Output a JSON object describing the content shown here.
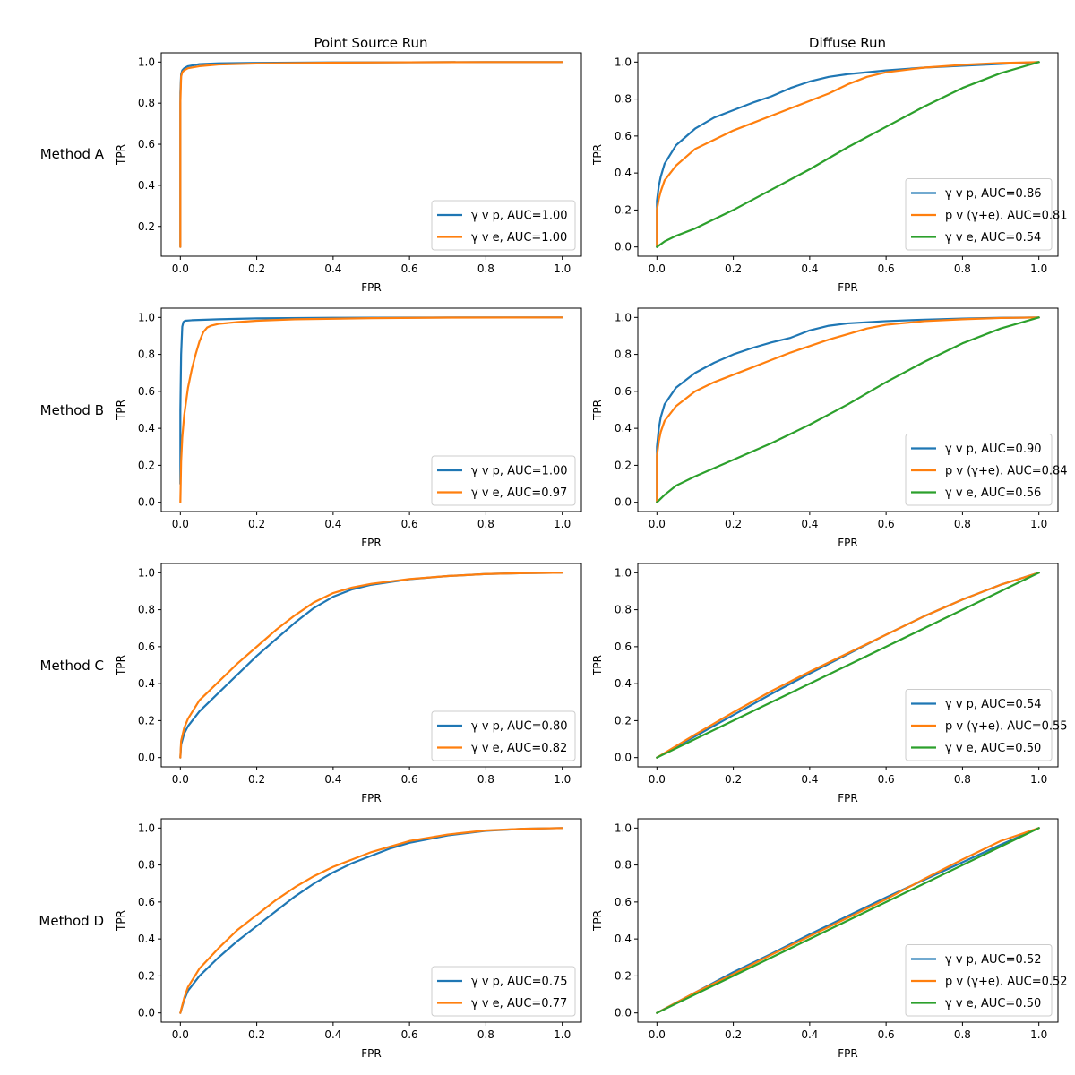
{
  "figure": {
    "column_titles": [
      "Point Source Run",
      "Diffuse Run"
    ],
    "row_labels": [
      "Method A",
      "Method B",
      "Method C",
      "Method D"
    ]
  },
  "colors": {
    "blue": "#1f77b4",
    "orange": "#ff7f0e",
    "green": "#2ca02c"
  },
  "chart_data": [
    {
      "type": "line",
      "row": 0,
      "col": 0,
      "xlabel": "FPR",
      "ylabel": "TPR",
      "xlim": [
        -0.05,
        1.05
      ],
      "ylim": [
        0.055,
        1.045
      ],
      "xticks": [
        "0.0",
        "0.2",
        "0.4",
        "0.6",
        "0.8",
        "1.0"
      ],
      "xtick_values": [
        0,
        0.2,
        0.4,
        0.6,
        0.8,
        1.0
      ],
      "yticks": [
        "0.2",
        "0.4",
        "0.6",
        "0.8",
        "1.0"
      ],
      "ytick_values": [
        0.2,
        0.4,
        0.6,
        0.8,
        1.0
      ],
      "series": [
        {
          "name": "γ v p, AUC=1.00",
          "color": "#1f77b4",
          "x": [
            0,
            0,
            0.002,
            0.005,
            0.01,
            0.02,
            0.05,
            0.1,
            0.2,
            0.4,
            0.6,
            0.8,
            1.0
          ],
          "y": [
            0.1,
            0.85,
            0.94,
            0.96,
            0.97,
            0.98,
            0.99,
            0.994,
            0.996,
            0.998,
            0.999,
            1.0,
            1.0
          ]
        },
        {
          "name": "γ v e, AUC=1.00",
          "color": "#ff7f0e",
          "x": [
            0,
            0,
            0.002,
            0.005,
            0.01,
            0.02,
            0.05,
            0.1,
            0.2,
            0.4,
            0.6,
            0.8,
            1.0
          ],
          "y": [
            0.1,
            0.8,
            0.93,
            0.95,
            0.96,
            0.97,
            0.98,
            0.988,
            0.993,
            0.997,
            0.999,
            1.0,
            1.0
          ]
        }
      ]
    },
    {
      "type": "line",
      "row": 0,
      "col": 1,
      "xlabel": "FPR",
      "ylabel": "TPR",
      "xlim": [
        -0.05,
        1.05
      ],
      "ylim": [
        -0.05,
        1.05
      ],
      "xticks": [
        "0.0",
        "0.2",
        "0.4",
        "0.6",
        "0.8",
        "1.0"
      ],
      "xtick_values": [
        0,
        0.2,
        0.4,
        0.6,
        0.8,
        1.0
      ],
      "yticks": [
        "0.0",
        "0.2",
        "0.4",
        "0.6",
        "0.8",
        "1.0"
      ],
      "ytick_values": [
        0,
        0.2,
        0.4,
        0.6,
        0.8,
        1.0
      ],
      "series": [
        {
          "name": "γ v p, AUC=0.86",
          "color": "#1f77b4",
          "x": [
            0,
            0,
            0.005,
            0.01,
            0.02,
            0.05,
            0.1,
            0.15,
            0.2,
            0.25,
            0.3,
            0.35,
            0.4,
            0.45,
            0.5,
            0.6,
            0.7,
            0.8,
            0.9,
            1.0
          ],
          "y": [
            0,
            0.25,
            0.33,
            0.38,
            0.45,
            0.55,
            0.64,
            0.7,
            0.74,
            0.78,
            0.815,
            0.86,
            0.895,
            0.92,
            0.935,
            0.955,
            0.97,
            0.98,
            0.99,
            1.0
          ]
        },
        {
          "name": "p v (γ+e). AUC=0.81",
          "color": "#ff7f0e",
          "x": [
            0,
            0,
            0.005,
            0.01,
            0.02,
            0.05,
            0.1,
            0.15,
            0.2,
            0.25,
            0.3,
            0.35,
            0.4,
            0.45,
            0.5,
            0.55,
            0.6,
            0.7,
            0.8,
            0.9,
            1.0
          ],
          "y": [
            0,
            0.2,
            0.26,
            0.3,
            0.36,
            0.44,
            0.53,
            0.58,
            0.63,
            0.67,
            0.71,
            0.75,
            0.79,
            0.83,
            0.88,
            0.92,
            0.945,
            0.97,
            0.985,
            0.995,
            1.0
          ]
        },
        {
          "name": "γ v e, AUC=0.54",
          "color": "#2ca02c",
          "x": [
            0,
            0.01,
            0.02,
            0.05,
            0.1,
            0.2,
            0.3,
            0.4,
            0.5,
            0.6,
            0.7,
            0.8,
            0.9,
            1.0
          ],
          "y": [
            0,
            0.015,
            0.03,
            0.06,
            0.1,
            0.2,
            0.31,
            0.42,
            0.54,
            0.65,
            0.76,
            0.86,
            0.94,
            1.0
          ]
        }
      ]
    },
    {
      "type": "line",
      "row": 1,
      "col": 0,
      "xlabel": "FPR",
      "ylabel": "TPR",
      "xlim": [
        -0.05,
        1.05
      ],
      "ylim": [
        -0.05,
        1.05
      ],
      "xticks": [
        "0.0",
        "0.2",
        "0.4",
        "0.6",
        "0.8",
        "1.0"
      ],
      "xtick_values": [
        0,
        0.2,
        0.4,
        0.6,
        0.8,
        1.0
      ],
      "yticks": [
        "0.0",
        "0.2",
        "0.4",
        "0.6",
        "0.8",
        "1.0"
      ],
      "ytick_values": [
        0,
        0.2,
        0.4,
        0.6,
        0.8,
        1.0
      ],
      "series": [
        {
          "name": "γ v p, AUC=1.00",
          "color": "#1f77b4",
          "x": [
            0,
            0,
            0.002,
            0.005,
            0.008,
            0.012,
            0.03,
            0.1,
            0.2,
            0.4,
            0.6,
            0.8,
            1.0
          ],
          "y": [
            0.1,
            0.5,
            0.8,
            0.95,
            0.975,
            0.982,
            0.985,
            0.99,
            0.995,
            0.998,
            0.999,
            1.0,
            1.0
          ]
        },
        {
          "name": "γ v e, AUC=0.97",
          "color": "#ff7f0e",
          "x": [
            0,
            0.002,
            0.005,
            0.01,
            0.02,
            0.03,
            0.04,
            0.05,
            0.06,
            0.07,
            0.08,
            0.1,
            0.15,
            0.2,
            0.3,
            0.5,
            0.7,
            1.0
          ],
          "y": [
            0,
            0.22,
            0.35,
            0.47,
            0.62,
            0.72,
            0.8,
            0.87,
            0.92,
            0.945,
            0.955,
            0.965,
            0.975,
            0.982,
            0.99,
            0.996,
            0.999,
            1.0
          ]
        }
      ]
    },
    {
      "type": "line",
      "row": 1,
      "col": 1,
      "xlabel": "FPR",
      "ylabel": "TPR",
      "xlim": [
        -0.05,
        1.05
      ],
      "ylim": [
        -0.05,
        1.05
      ],
      "xticks": [
        "0.0",
        "0.2",
        "0.4",
        "0.6",
        "0.8",
        "1.0"
      ],
      "xtick_values": [
        0,
        0.2,
        0.4,
        0.6,
        0.8,
        1.0
      ],
      "yticks": [
        "0.0",
        "0.2",
        "0.4",
        "0.6",
        "0.8",
        "1.0"
      ],
      "ytick_values": [
        0,
        0.2,
        0.4,
        0.6,
        0.8,
        1.0
      ],
      "series": [
        {
          "name": "γ v p, AUC=0.90",
          "color": "#1f77b4",
          "x": [
            0,
            0,
            0.005,
            0.01,
            0.02,
            0.05,
            0.1,
            0.15,
            0.2,
            0.25,
            0.3,
            0.35,
            0.4,
            0.45,
            0.5,
            0.6,
            0.7,
            0.8,
            0.9,
            1.0
          ],
          "y": [
            0,
            0.3,
            0.4,
            0.46,
            0.53,
            0.62,
            0.7,
            0.755,
            0.8,
            0.835,
            0.865,
            0.89,
            0.93,
            0.955,
            0.968,
            0.98,
            0.988,
            0.994,
            0.998,
            1.0
          ]
        },
        {
          "name": "p v (γ+e). AUC=0.84",
          "color": "#ff7f0e",
          "x": [
            0,
            0,
            0.005,
            0.01,
            0.02,
            0.05,
            0.1,
            0.15,
            0.2,
            0.25,
            0.3,
            0.35,
            0.4,
            0.45,
            0.5,
            0.55,
            0.6,
            0.7,
            0.8,
            0.9,
            1.0
          ],
          "y": [
            0,
            0.25,
            0.33,
            0.38,
            0.44,
            0.52,
            0.6,
            0.65,
            0.69,
            0.73,
            0.77,
            0.81,
            0.845,
            0.88,
            0.91,
            0.94,
            0.96,
            0.98,
            0.99,
            0.997,
            1.0
          ]
        },
        {
          "name": "γ v e, AUC=0.56",
          "color": "#2ca02c",
          "x": [
            0,
            0.02,
            0.05,
            0.1,
            0.2,
            0.3,
            0.4,
            0.5,
            0.6,
            0.7,
            0.8,
            0.9,
            1.0
          ],
          "y": [
            0,
            0.04,
            0.09,
            0.14,
            0.23,
            0.32,
            0.42,
            0.53,
            0.65,
            0.76,
            0.86,
            0.94,
            1.0
          ]
        }
      ]
    },
    {
      "type": "line",
      "row": 2,
      "col": 0,
      "xlabel": "FPR",
      "ylabel": "TPR",
      "xlim": [
        -0.05,
        1.05
      ],
      "ylim": [
        -0.05,
        1.05
      ],
      "xticks": [
        "0.0",
        "0.2",
        "0.4",
        "0.6",
        "0.8",
        "1.0"
      ],
      "xtick_values": [
        0,
        0.2,
        0.4,
        0.6,
        0.8,
        1.0
      ],
      "yticks": [
        "0.0",
        "0.2",
        "0.4",
        "0.6",
        "0.8",
        "1.0"
      ],
      "ytick_values": [
        0,
        0.2,
        0.4,
        0.6,
        0.8,
        1.0
      ],
      "series": [
        {
          "name": "γ v p, AUC=0.80",
          "color": "#1f77b4",
          "x": [
            0,
            0.002,
            0.01,
            0.02,
            0.05,
            0.1,
            0.15,
            0.2,
            0.25,
            0.3,
            0.35,
            0.4,
            0.45,
            0.5,
            0.6,
            0.7,
            0.8,
            0.9,
            1.0
          ],
          "y": [
            0,
            0.07,
            0.13,
            0.17,
            0.25,
            0.35,
            0.45,
            0.55,
            0.64,
            0.73,
            0.81,
            0.87,
            0.91,
            0.935,
            0.965,
            0.982,
            0.993,
            0.998,
            1.0
          ]
        },
        {
          "name": "γ v e, AUC=0.82",
          "color": "#ff7f0e",
          "x": [
            0,
            0.002,
            0.01,
            0.02,
            0.05,
            0.1,
            0.15,
            0.2,
            0.25,
            0.3,
            0.35,
            0.4,
            0.45,
            0.5,
            0.6,
            0.7,
            0.8,
            0.9,
            1.0
          ],
          "y": [
            0,
            0.09,
            0.16,
            0.21,
            0.31,
            0.41,
            0.51,
            0.6,
            0.69,
            0.77,
            0.84,
            0.89,
            0.92,
            0.94,
            0.966,
            0.982,
            0.993,
            0.998,
            1.0
          ]
        }
      ]
    },
    {
      "type": "line",
      "row": 2,
      "col": 1,
      "xlabel": "FPR",
      "ylabel": "TPR",
      "xlim": [
        -0.05,
        1.05
      ],
      "ylim": [
        -0.05,
        1.05
      ],
      "xticks": [
        "0.0",
        "0.2",
        "0.4",
        "0.6",
        "0.8",
        "1.0"
      ],
      "xtick_values": [
        0,
        0.2,
        0.4,
        0.6,
        0.8,
        1.0
      ],
      "yticks": [
        "0.0",
        "0.2",
        "0.4",
        "0.6",
        "0.8",
        "1.0"
      ],
      "ytick_values": [
        0,
        0.2,
        0.4,
        0.6,
        0.8,
        1.0
      ],
      "series": [
        {
          "name": "γ v p, AUC=0.54",
          "color": "#1f77b4",
          "x": [
            0,
            0.1,
            0.2,
            0.3,
            0.4,
            0.5,
            0.6,
            0.7,
            0.8,
            0.9,
            1.0
          ],
          "y": [
            0,
            0.115,
            0.23,
            0.345,
            0.455,
            0.56,
            0.665,
            0.765,
            0.855,
            0.935,
            1.0
          ]
        },
        {
          "name": "p v (γ+e). AUC=0.55",
          "color": "#ff7f0e",
          "x": [
            0,
            0.1,
            0.2,
            0.3,
            0.4,
            0.5,
            0.6,
            0.7,
            0.8,
            0.9,
            1.0
          ],
          "y": [
            0,
            0.125,
            0.245,
            0.36,
            0.465,
            0.565,
            0.665,
            0.765,
            0.855,
            0.935,
            1.0
          ]
        },
        {
          "name": "γ v e, AUC=0.50",
          "color": "#2ca02c",
          "x": [
            0,
            0.1,
            0.2,
            0.3,
            0.4,
            0.5,
            0.6,
            0.7,
            0.8,
            0.9,
            1.0
          ],
          "y": [
            0,
            0.1,
            0.2,
            0.3,
            0.4,
            0.5,
            0.6,
            0.7,
            0.8,
            0.9,
            1.0
          ]
        }
      ]
    },
    {
      "type": "line",
      "row": 3,
      "col": 0,
      "xlabel": "FPR",
      "ylabel": "TPR",
      "xlim": [
        -0.05,
        1.05
      ],
      "ylim": [
        -0.05,
        1.05
      ],
      "xticks": [
        "0.0",
        "0.2",
        "0.4",
        "0.6",
        "0.8",
        "1.0"
      ],
      "xtick_values": [
        0,
        0.2,
        0.4,
        0.6,
        0.8,
        1.0
      ],
      "yticks": [
        "0.0",
        "0.2",
        "0.4",
        "0.6",
        "0.8",
        "1.0"
      ],
      "ytick_values": [
        0,
        0.2,
        0.4,
        0.6,
        0.8,
        1.0
      ],
      "series": [
        {
          "name": "γ v p, AUC=0.75",
          "color": "#1f77b4",
          "x": [
            0,
            0.01,
            0.02,
            0.05,
            0.1,
            0.15,
            0.2,
            0.25,
            0.3,
            0.35,
            0.4,
            0.45,
            0.5,
            0.55,
            0.6,
            0.7,
            0.8,
            0.9,
            1.0
          ],
          "y": [
            0,
            0.07,
            0.12,
            0.2,
            0.3,
            0.39,
            0.47,
            0.55,
            0.63,
            0.7,
            0.76,
            0.81,
            0.85,
            0.89,
            0.92,
            0.96,
            0.985,
            0.996,
            1.0
          ]
        },
        {
          "name": "γ v e, AUC=0.77",
          "color": "#ff7f0e",
          "x": [
            0,
            0.01,
            0.02,
            0.05,
            0.1,
            0.15,
            0.2,
            0.25,
            0.3,
            0.35,
            0.4,
            0.45,
            0.5,
            0.55,
            0.6,
            0.7,
            0.8,
            0.9,
            1.0
          ],
          "y": [
            0,
            0.08,
            0.14,
            0.24,
            0.35,
            0.45,
            0.53,
            0.61,
            0.68,
            0.74,
            0.79,
            0.83,
            0.87,
            0.9,
            0.93,
            0.965,
            0.987,
            0.996,
            1.0
          ]
        }
      ]
    },
    {
      "type": "line",
      "row": 3,
      "col": 1,
      "xlabel": "FPR",
      "ylabel": "TPR",
      "xlim": [
        -0.05,
        1.05
      ],
      "ylim": [
        -0.05,
        1.05
      ],
      "xticks": [
        "0.0",
        "0.2",
        "0.4",
        "0.6",
        "0.8",
        "1.0"
      ],
      "xtick_values": [
        0,
        0.2,
        0.4,
        0.6,
        0.8,
        1.0
      ],
      "yticks": [
        "0.0",
        "0.2",
        "0.4",
        "0.6",
        "0.8",
        "1.0"
      ],
      "ytick_values": [
        0,
        0.2,
        0.4,
        0.6,
        0.8,
        1.0
      ],
      "series": [
        {
          "name": "γ v p, AUC=0.52",
          "color": "#1f77b4",
          "x": [
            0,
            0.1,
            0.2,
            0.3,
            0.4,
            0.5,
            0.6,
            0.7,
            0.8,
            0.9,
            1.0
          ],
          "y": [
            0,
            0.11,
            0.22,
            0.32,
            0.425,
            0.525,
            0.625,
            0.72,
            0.815,
            0.91,
            1.0
          ]
        },
        {
          "name": "p v (γ+e). AUC=0.52",
          "color": "#ff7f0e",
          "x": [
            0,
            0.1,
            0.2,
            0.3,
            0.4,
            0.5,
            0.6,
            0.7,
            0.8,
            0.9,
            1.0
          ],
          "y": [
            0,
            0.11,
            0.21,
            0.315,
            0.415,
            0.515,
            0.615,
            0.725,
            0.83,
            0.93,
            1.0
          ]
        },
        {
          "name": "γ v e, AUC=0.50",
          "color": "#2ca02c",
          "x": [
            0,
            0.1,
            0.2,
            0.3,
            0.4,
            0.5,
            0.6,
            0.7,
            0.8,
            0.9,
            1.0
          ],
          "y": [
            0,
            0.1,
            0.2,
            0.3,
            0.4,
            0.5,
            0.6,
            0.7,
            0.8,
            0.9,
            1.0
          ]
        }
      ]
    }
  ]
}
